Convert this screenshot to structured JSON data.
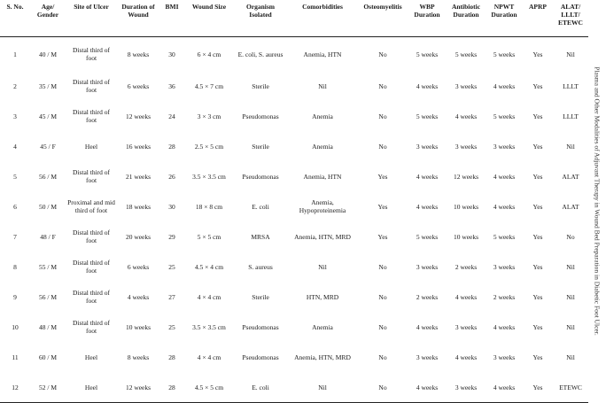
{
  "caption": "Plasma and Other Modalities of Adjuvant Therapy in Wound Bed Preparation in Diabetic Foot Ulcer.",
  "columns": [
    {
      "key": "sno",
      "label": "S. No."
    },
    {
      "key": "age",
      "label": "Age/ Gender"
    },
    {
      "key": "site",
      "label": "Site of Ulcer"
    },
    {
      "key": "duration",
      "label": "Duration of Wound"
    },
    {
      "key": "bmi",
      "label": "BMI"
    },
    {
      "key": "size",
      "label": "Wound Size"
    },
    {
      "key": "organism",
      "label": "Organism Isolated"
    },
    {
      "key": "comorb",
      "label": "Comorbidities"
    },
    {
      "key": "osteo",
      "label": "Osteomyelitis"
    },
    {
      "key": "wbp",
      "label": "WBP Duration"
    },
    {
      "key": "abx",
      "label": "Antibiotic Duration"
    },
    {
      "key": "npwt",
      "label": "NPWT Duration"
    },
    {
      "key": "aprp",
      "label": "APRP"
    },
    {
      "key": "alat",
      "label": "ALAT/ LLLT/ ETEWC"
    }
  ],
  "rows": [
    [
      "1",
      "40 / M",
      "Distal third of foot",
      "8 weeks",
      "30",
      "6 × 4 cm",
      "E. coli, S. aureus",
      "Anemia, HTN",
      "No",
      "5 weeks",
      "5 weeks",
      "5 weeks",
      "Yes",
      "Nil"
    ],
    [
      "2",
      "35 / M",
      "Distal third of foot",
      "6 weeks",
      "36",
      "4.5 × 7 cm",
      "Sterile",
      "Nil",
      "No",
      "4 weeks",
      "3 weeks",
      "4 weeks",
      "Yes",
      "LLLT"
    ],
    [
      "3",
      "45 / M",
      "Distal third of foot",
      "12 weeks",
      "24",
      "3 × 3 cm",
      "Pseudomonas",
      "Anemia",
      "No",
      "5 weeks",
      "4 weeks",
      "5 weeks",
      "Yes",
      "LLLT"
    ],
    [
      "4",
      "45 / F",
      "Heel",
      "16 weeks",
      "28",
      "2.5 × 5 cm",
      "Sterile",
      "Anemia",
      "No",
      "3 weeks",
      "3 weeks",
      "3 weeks",
      "Yes",
      "Nil"
    ],
    [
      "5",
      "56 / M",
      "Distal third of foot",
      "21 weeks",
      "26",
      "3.5 × 3.5 cm",
      "Pseudomonas",
      "Anemia, HTN",
      "Yes",
      "4 weeks",
      "12 weeks",
      "4 weeks",
      "Yes",
      "ALAT"
    ],
    [
      "6",
      "50 / M",
      "Proximal and mid third of foot",
      "18 weeks",
      "30",
      "18 × 8 cm",
      "E. coli",
      "Anemia, Hypoproteinemia",
      "Yes",
      "4 weeks",
      "10 weeks",
      "4 weeks",
      "Yes",
      "ALAT"
    ],
    [
      "7",
      "48 / F",
      "Distal third of foot",
      "20 weeks",
      "29",
      "5 × 5 cm",
      "MRSA",
      "Anemia, HTN, MRD",
      "Yes",
      "5 weeks",
      "10 weeks",
      "5 weeks",
      "Yes",
      "No"
    ],
    [
      "8",
      "55 / M",
      "Distal third of foot",
      "6 weeks",
      "25",
      "4.5 × 4 cm",
      "S. aureus",
      "Nil",
      "No",
      "3 weeks",
      "2 weeks",
      "3 weeks",
      "Yes",
      "Nil"
    ],
    [
      "9",
      "56 / M",
      "Distal third of foot",
      "4 weeks",
      "27",
      "4 × 4 cm",
      "Sterile",
      "HTN, MRD",
      "No",
      "2 weeks",
      "4 weeks",
      "2 weeks",
      "Yes",
      "Nil"
    ],
    [
      "10",
      "48 / M",
      "Distal third of foot",
      "10 weeks",
      "25",
      "3.5 × 3.5 cm",
      "Pseudomonas",
      "Anemia",
      "No",
      "4 weeks",
      "3 weeks",
      "4 weeks",
      "Yes",
      "Nil"
    ],
    [
      "11",
      "60 / M",
      "Heel",
      "8 weeks",
      "28",
      "4 × 4 cm",
      "Pseudomonas",
      "Anemia, HTN, MRD",
      "No",
      "3 weeks",
      "4 weeks",
      "3 weeks",
      "Yes",
      "Nil"
    ],
    [
      "12",
      "52 / M",
      "Heel",
      "12 weeks",
      "28",
      "4.5 × 5 cm",
      "E. coli",
      "Nil",
      "No",
      "4 weeks",
      "3 weeks",
      "4 weeks",
      "Yes",
      "ETEWC"
    ]
  ]
}
